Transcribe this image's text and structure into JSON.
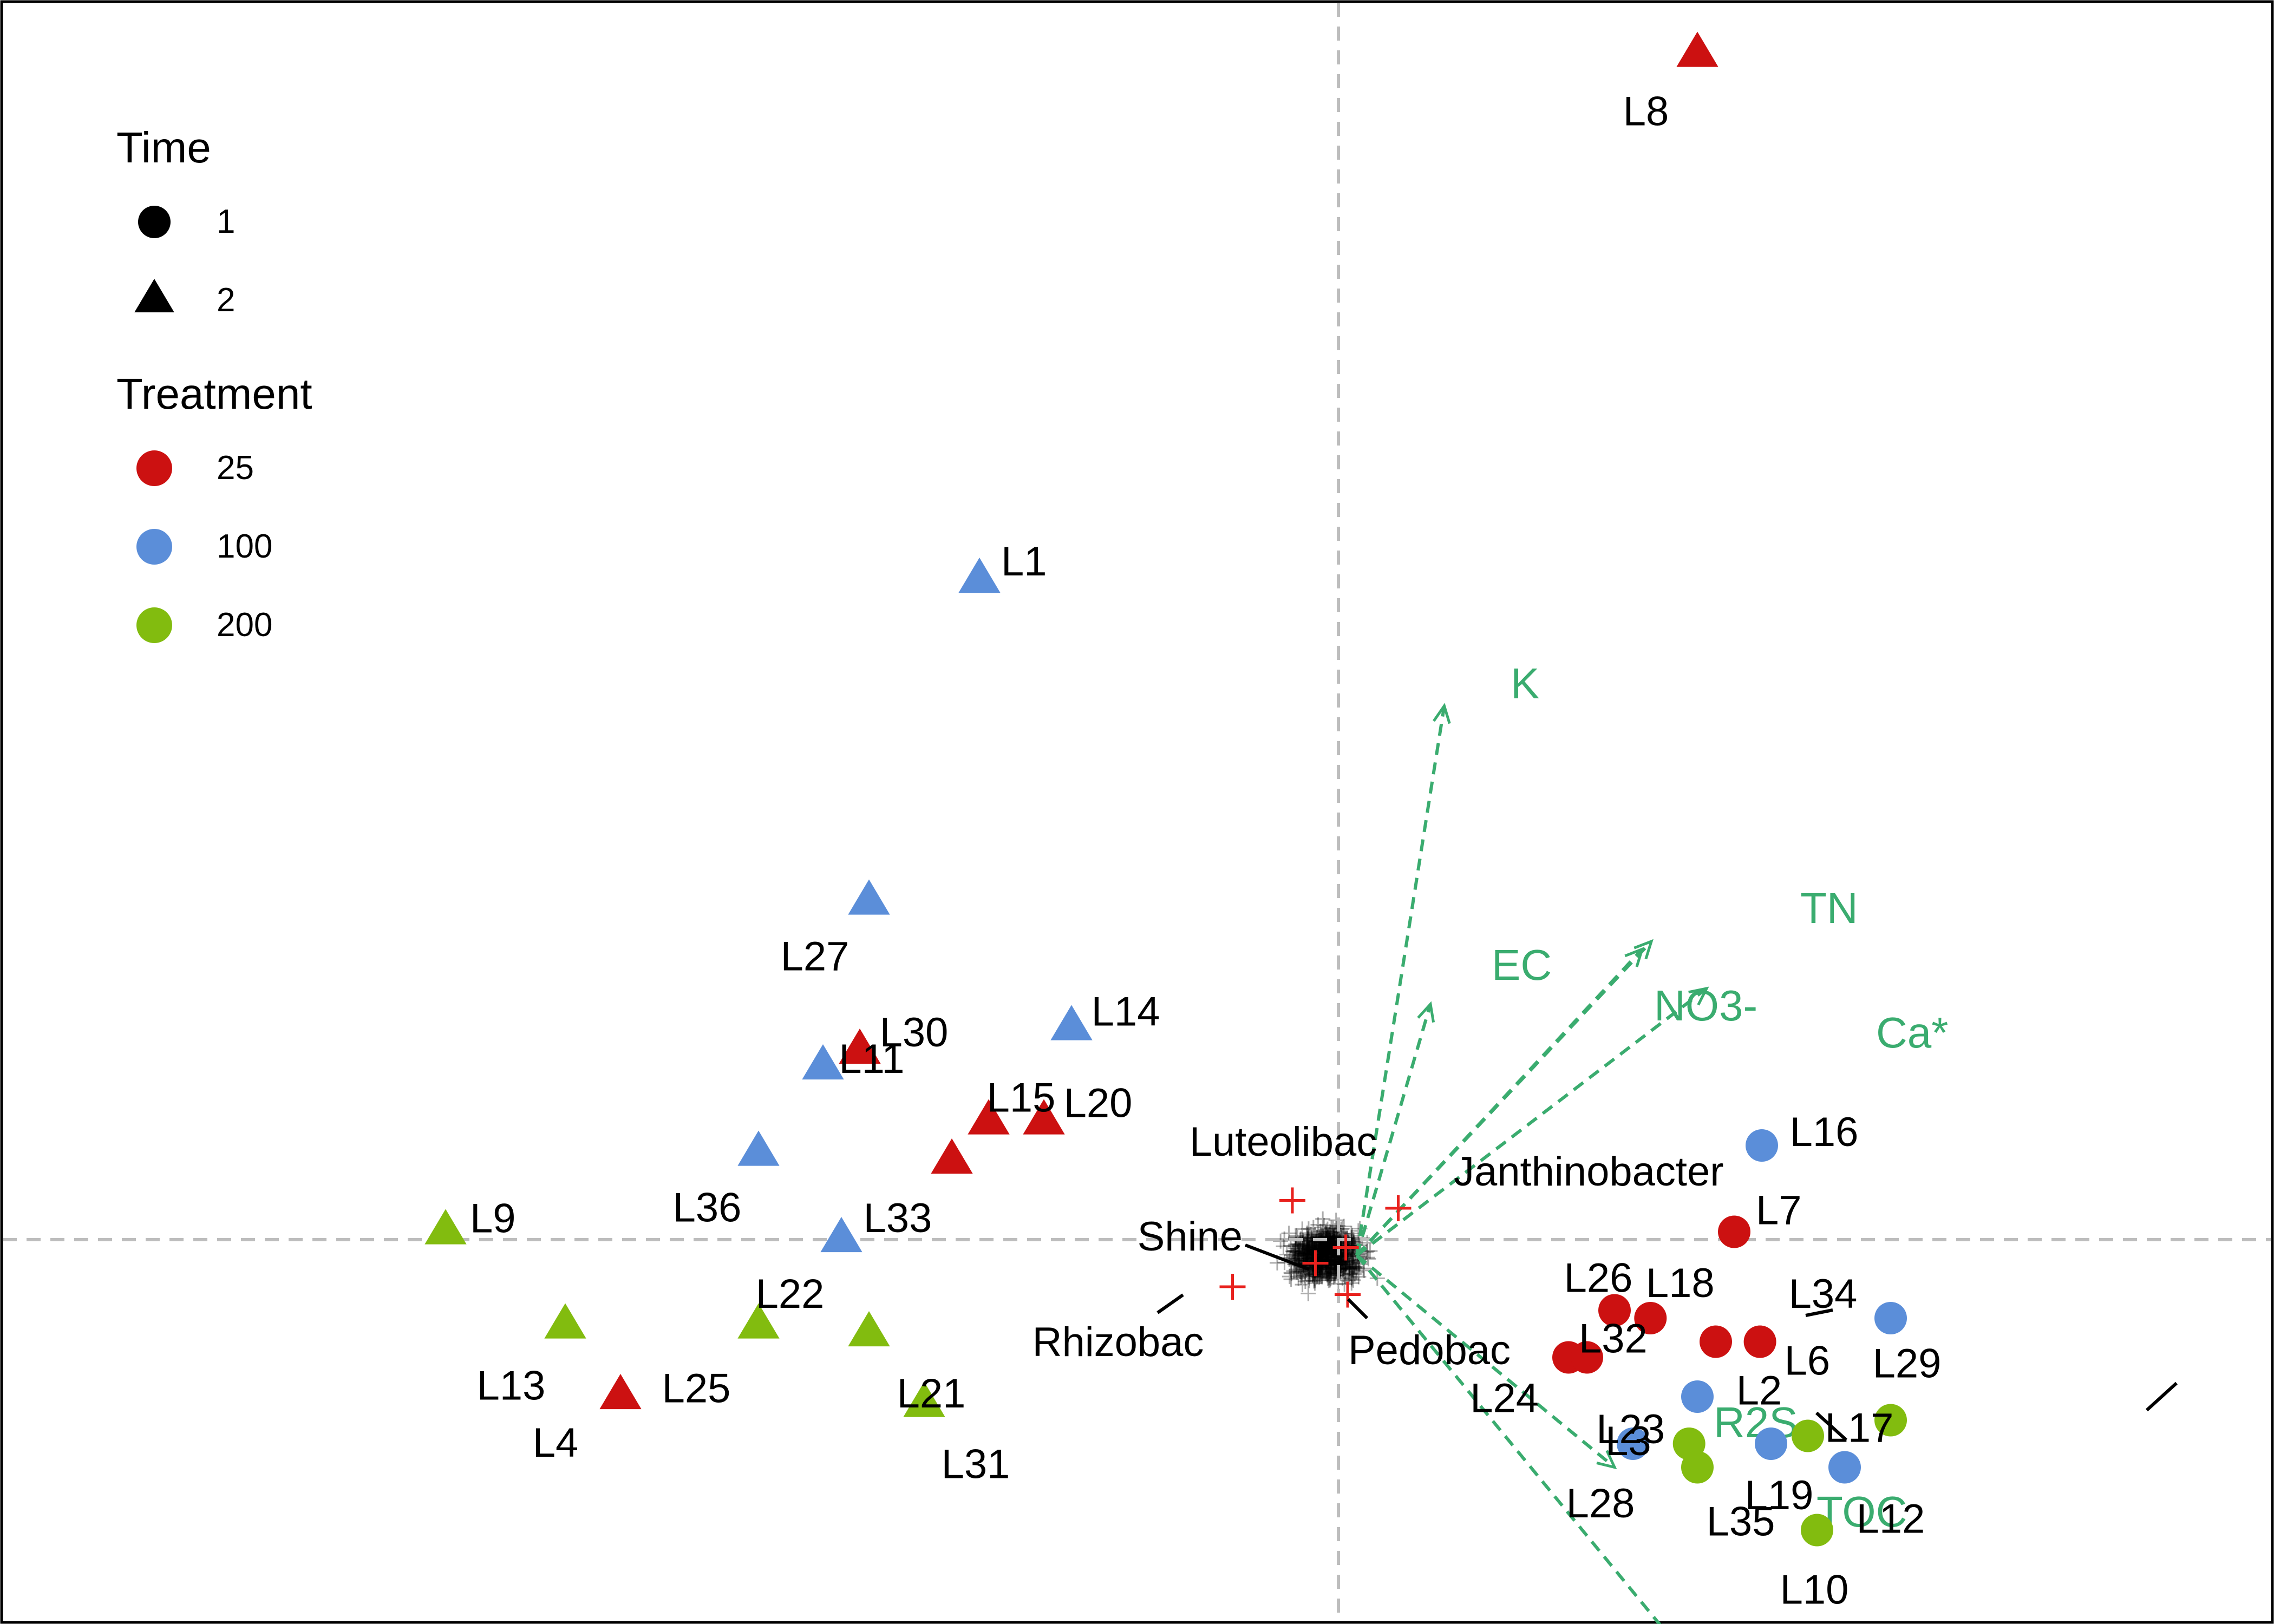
{
  "chart_data": {
    "type": "scatter",
    "title": "",
    "xlabel": "",
    "ylabel": "",
    "xlim": [
      -1,
      1
    ],
    "ylim": [
      -0.5,
      1.6
    ],
    "reference_lines": {
      "x": 0,
      "y": 0
    },
    "legend_position": "top-left",
    "legend": [
      {
        "title": "Time",
        "items": [
          {
            "label": "1",
            "shape": "circle"
          },
          {
            "label": "2",
            "shape": "triangle"
          }
        ]
      },
      {
        "title": "Treatment",
        "items": [
          {
            "label": "25",
            "color": "#cc1111"
          },
          {
            "label": "100",
            "color": "#5b8ed9"
          },
          {
            "label": "200",
            "color": "#82bc0f"
          }
        ]
      }
    ],
    "treatment_colors": {
      "25": "#cc1111",
      "100": "#5b8ed9",
      "200": "#82bc0f"
    },
    "samples": [
      {
        "label": "L1",
        "time": "2",
        "treatment": "100",
        "x": -0.39,
        "y": 0.84
      },
      {
        "label": "L2",
        "time": "1",
        "treatment": "25",
        "x": 0.41,
        "y": -0.13
      },
      {
        "label": "L3",
        "time": "1",
        "treatment": "200",
        "x": 0.381,
        "y": -0.26
      },
      {
        "label": "L4",
        "time": "2",
        "treatment": "25",
        "x": -0.78,
        "y": -0.2
      },
      {
        "label": "L6",
        "time": "1",
        "treatment": "25",
        "x": 0.458,
        "y": -0.13
      },
      {
        "label": "L7",
        "time": "1",
        "treatment": "25",
        "x": 0.43,
        "y": 0.01
      },
      {
        "label": "L8",
        "time": "2",
        "treatment": "25",
        "x": 0.39,
        "y": 1.51
      },
      {
        "label": "L9",
        "time": "2",
        "treatment": "200",
        "x": -0.97,
        "y": 0.01
      },
      {
        "label": "L10",
        "time": "1",
        "treatment": "200",
        "x": 0.52,
        "y": -0.37
      },
      {
        "label": "L11",
        "time": "2",
        "treatment": "100",
        "x": -0.56,
        "y": 0.22
      },
      {
        "label": "L12",
        "time": "1",
        "treatment": "100",
        "x": 0.55,
        "y": -0.29
      },
      {
        "label": "L13",
        "time": "2",
        "treatment": "200",
        "x": -0.84,
        "y": -0.11
      },
      {
        "label": "L14",
        "time": "2",
        "treatment": "100",
        "x": -0.29,
        "y": 0.27
      },
      {
        "label": "L15",
        "time": "2",
        "treatment": "25",
        "x": -0.38,
        "y": 0.15
      },
      {
        "label": "L16",
        "time": "1",
        "treatment": "100",
        "x": 0.46,
        "y": 0.12
      },
      {
        "label": "L17",
        "time": "1",
        "treatment": "200",
        "x": 0.51,
        "y": -0.25
      },
      {
        "label": "L18",
        "time": "1",
        "treatment": "25",
        "x": 0.339,
        "y": -0.1
      },
      {
        "label": "L19",
        "time": "1",
        "treatment": "100",
        "x": 0.47,
        "y": -0.26
      },
      {
        "label": "L20",
        "time": "2",
        "treatment": "25",
        "x": -0.32,
        "y": 0.15
      },
      {
        "label": "L21",
        "time": "2",
        "treatment": "200",
        "x": -0.51,
        "y": -0.12
      },
      {
        "label": "L22",
        "time": "2",
        "treatment": "100",
        "x": -0.54,
        "y": 0.0
      },
      {
        "label": "L23",
        "time": "1",
        "treatment": "100",
        "x": 0.39,
        "y": -0.2
      },
      {
        "label": "L24",
        "time": "1",
        "treatment": "25",
        "x": 0.25,
        "y": -0.15
      },
      {
        "label": "L25",
        "time": "2",
        "treatment": "200",
        "x": -0.63,
        "y": -0.11
      },
      {
        "label": "L26",
        "time": "1",
        "treatment": "25",
        "x": 0.3,
        "y": -0.09
      },
      {
        "label": "L27",
        "time": "2",
        "treatment": "100",
        "x": -0.51,
        "y": 0.43
      },
      {
        "label": "L28",
        "time": "1",
        "treatment": "100",
        "x": 0.32,
        "y": -0.26
      },
      {
        "label": "L29",
        "time": "1",
        "treatment": "200",
        "x": 0.6,
        "y": -0.23
      },
      {
        "label": "L30",
        "time": "2",
        "treatment": "25",
        "x": -0.52,
        "y": 0.24
      },
      {
        "label": "L31",
        "time": "2",
        "treatment": "200",
        "x": -0.45,
        "y": -0.21
      },
      {
        "label": "L32",
        "time": "1",
        "treatment": "25",
        "x": 0.27,
        "y": -0.15
      },
      {
        "label": "L33",
        "time": "2",
        "treatment": "25",
        "x": -0.42,
        "y": 0.1
      },
      {
        "label": "L34",
        "time": "1",
        "treatment": "100",
        "x": 0.6,
        "y": -0.1
      },
      {
        "label": "L35",
        "time": "1",
        "treatment": "200",
        "x": 0.39,
        "y": -0.29
      },
      {
        "label": "L36",
        "time": "2",
        "treatment": "100",
        "x": -0.63,
        "y": 0.11
      }
    ],
    "species": [
      {
        "label": "Luteolibac",
        "x": -0.05,
        "y": 0.05
      },
      {
        "label": "Janthinobacter",
        "x": 0.065,
        "y": 0.04
      },
      {
        "label": "Shine",
        "x": -0.025,
        "y": -0.03
      },
      {
        "label": "Rhizobac",
        "x": -0.115,
        "y": -0.06
      },
      {
        "label": "Pedobac",
        "x": 0.01,
        "y": -0.07
      },
      {
        "label": "",
        "x": 0.008,
        "y": -0.01
      }
    ],
    "env_vectors": [
      {
        "label": "K",
        "x": 0.115,
        "y": 0.68
      },
      {
        "label": "EC",
        "x": 0.1,
        "y": 0.3
      },
      {
        "label": "TN",
        "x": 0.34,
        "y": 0.38
      },
      {
        "label": "NO3-",
        "x": 0.33,
        "y": 0.37
      },
      {
        "label": "Ca*",
        "x": 0.4,
        "y": 0.32
      },
      {
        "label": "R2S",
        "x": 0.3,
        "y": -0.29
      },
      {
        "label": "TOC",
        "x": 0.37,
        "y": -0.52
      }
    ]
  }
}
